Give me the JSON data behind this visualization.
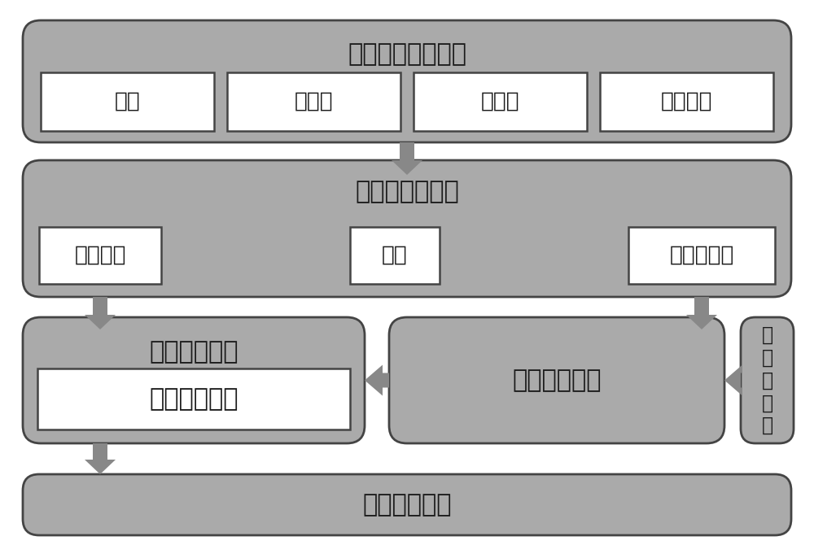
{
  "bg_color": "#ffffff",
  "box_gray": "#aaaaaa",
  "box_white": "#ffffff",
  "text_color": "#1a1a1a",
  "arrow_color": "#888888",
  "border_color": "#444444",
  "title_top": "在线数据采集单元",
  "title_mid": "数据预处理单元",
  "label_calc": "热值计算单元",
  "label_model": "模型修正单元",
  "label_calc_inner": "热值计算模型",
  "title_bottom": "入炉原煤热值",
  "label_offline": "离\n线\n数\n据\n源",
  "top_items": [
    "氧量",
    "总风量",
    "总煤量",
    "炉膛负压"
  ],
  "mid_items": [
    "坏值剔除",
    "滤波",
    "有效性检查"
  ],
  "font_size_title": 22,
  "font_size_label": 19,
  "font_size_small": 17,
  "font_size_offline": 17
}
